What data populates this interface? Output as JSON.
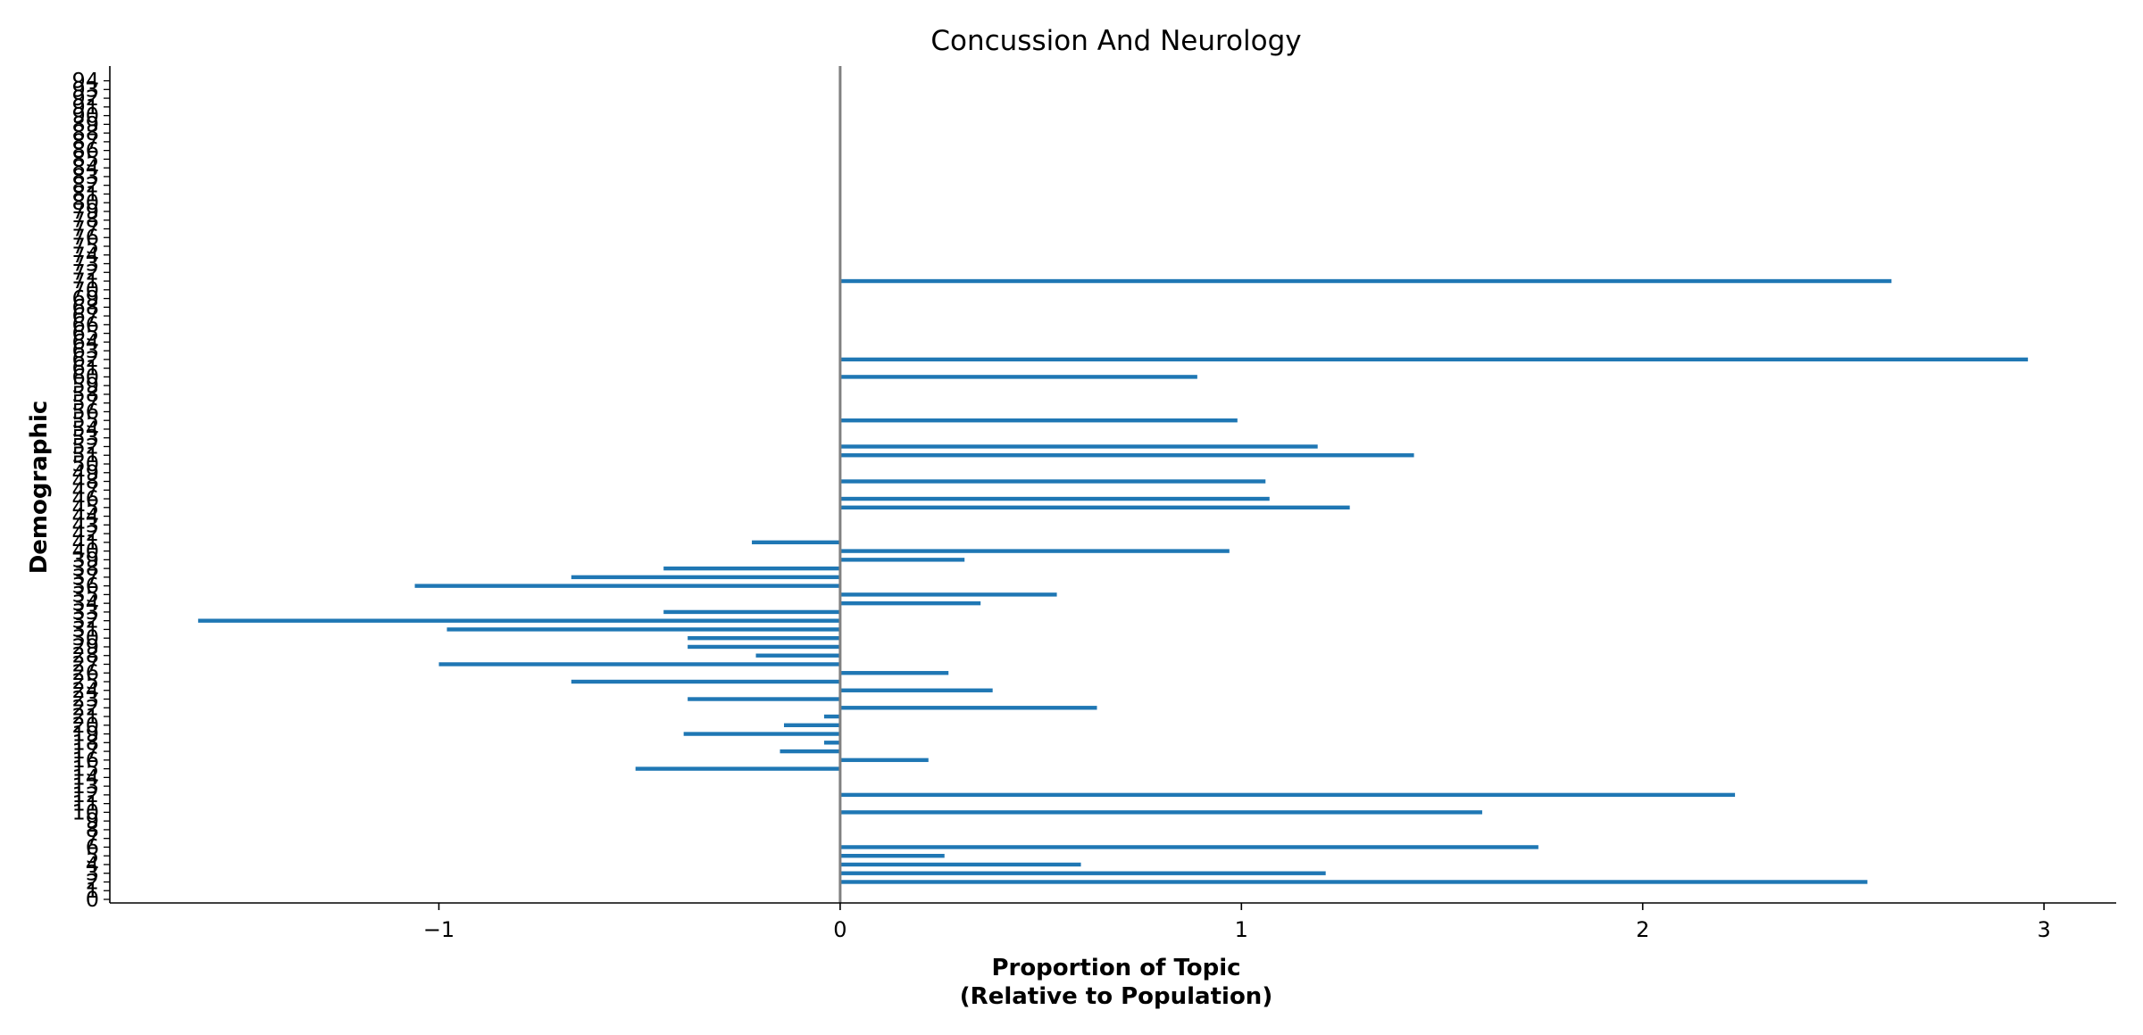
{
  "chart_data": {
    "type": "bar",
    "orientation": "horizontal",
    "title": "Concussion And Neurology",
    "xlabel_line1": "Proportion of Topic",
    "xlabel_line2": "(Relative to Population)",
    "ylabel": "Demographic",
    "xlim": [
      -1.82,
      3.18
    ],
    "ylim": [
      0,
      94
    ],
    "xticks": [
      {
        "value": -1,
        "label": "−1"
      },
      {
        "value": 0,
        "label": "0"
      },
      {
        "value": 1,
        "label": "1"
      },
      {
        "value": 2,
        "label": "2"
      },
      {
        "value": 3,
        "label": "3"
      }
    ],
    "grid": false,
    "bar_color": "#1f77b4",
    "zero_line_color": "#808080",
    "categories": [
      "0",
      "1",
      "2",
      "3",
      "4",
      "5",
      "6",
      "7",
      "8",
      "9",
      "10",
      "11",
      "12",
      "13",
      "14",
      "15",
      "16",
      "17",
      "18",
      "19",
      "20",
      "21",
      "22",
      "23",
      "24",
      "25",
      "26",
      "27",
      "28",
      "29",
      "30",
      "31",
      "32",
      "33",
      "34",
      "35",
      "36",
      "37",
      "38",
      "39",
      "40",
      "41",
      "42",
      "43",
      "44",
      "45",
      "46",
      "47",
      "48",
      "49",
      "50",
      "51",
      "52",
      "53",
      "54",
      "55",
      "56",
      "57",
      "58",
      "59",
      "60",
      "61",
      "62",
      "63",
      "64",
      "65",
      "66",
      "67",
      "68",
      "69",
      "70",
      "71",
      "72",
      "73",
      "74",
      "75",
      "76",
      "77",
      "78",
      "79",
      "80",
      "81",
      "82",
      "83",
      "84",
      "85",
      "86",
      "87",
      "88",
      "89",
      "90",
      "91",
      "92",
      "93",
      "94"
    ],
    "bars": [
      {
        "y": 2,
        "value": 2.56
      },
      {
        "y": 3,
        "value": 1.21
      },
      {
        "y": 4,
        "value": 0.6
      },
      {
        "y": 5,
        "value": 0.26
      },
      {
        "y": 6,
        "value": 1.74
      },
      {
        "y": 10,
        "value": 1.6
      },
      {
        "y": 12,
        "value": 2.23
      },
      {
        "y": 15,
        "value": -0.51
      },
      {
        "y": 16,
        "value": 0.22
      },
      {
        "y": 17,
        "value": -0.15
      },
      {
        "y": 18,
        "value": -0.04
      },
      {
        "y": 19,
        "value": -0.39
      },
      {
        "y": 20,
        "value": -0.14
      },
      {
        "y": 21,
        "value": -0.04
      },
      {
        "y": 22,
        "value": 0.64
      },
      {
        "y": 23,
        "value": -0.38
      },
      {
        "y": 24,
        "value": 0.38
      },
      {
        "y": 25,
        "value": -0.67
      },
      {
        "y": 26,
        "value": 0.27
      },
      {
        "y": 27,
        "value": -1.0
      },
      {
        "y": 28,
        "value": -0.21
      },
      {
        "y": 29,
        "value": -0.38
      },
      {
        "y": 30,
        "value": -0.38
      },
      {
        "y": 31,
        "value": -0.98
      },
      {
        "y": 32,
        "value": -1.6
      },
      {
        "y": 33,
        "value": -0.44
      },
      {
        "y": 34,
        "value": 0.35
      },
      {
        "y": 35,
        "value": 0.54
      },
      {
        "y": 36,
        "value": -1.06
      },
      {
        "y": 37,
        "value": -0.67
      },
      {
        "y": 38,
        "value": -0.44
      },
      {
        "y": 39,
        "value": 0.31
      },
      {
        "y": 40,
        "value": 0.97
      },
      {
        "y": 41,
        "value": -0.22
      },
      {
        "y": 45,
        "value": 1.27
      },
      {
        "y": 46,
        "value": 1.07
      },
      {
        "y": 48,
        "value": 1.06
      },
      {
        "y": 51,
        "value": 1.43
      },
      {
        "y": 52,
        "value": 1.19
      },
      {
        "y": 55,
        "value": 0.99
      },
      {
        "y": 60,
        "value": 0.89
      },
      {
        "y": 62,
        "value": 2.96
      },
      {
        "y": 71,
        "value": 2.62
      }
    ]
  }
}
